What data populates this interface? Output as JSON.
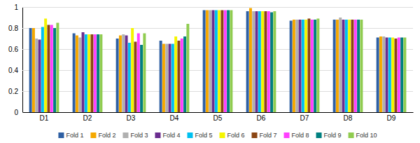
{
  "chart_data": {
    "type": "bar",
    "categories": [
      "D1",
      "D2",
      "D3",
      "D4",
      "D5",
      "D6",
      "D7",
      "D8",
      "D9"
    ],
    "series": [
      {
        "name": "Fold 1",
        "color": "#2e5fa3",
        "values": [
          0.8,
          0.75,
          0.7,
          0.68,
          0.97,
          0.96,
          0.87,
          0.88,
          0.71
        ]
      },
      {
        "name": "Fold 2",
        "color": "#f5a800",
        "values": [
          0.8,
          0.73,
          0.73,
          0.65,
          0.97,
          0.99,
          0.88,
          0.88,
          0.72
        ]
      },
      {
        "name": "Fold 3",
        "color": "#b0b0b0",
        "values": [
          0.7,
          0.71,
          0.74,
          0.65,
          0.97,
          0.96,
          0.88,
          0.9,
          0.72
        ]
      },
      {
        "name": "Fold 4",
        "color": "#6a2d8f",
        "values": [
          0.69,
          0.76,
          0.73,
          0.65,
          0.97,
          0.96,
          0.88,
          0.88,
          0.71
        ]
      },
      {
        "name": "Fold 5",
        "color": "#00c0f0",
        "values": [
          0.81,
          0.74,
          0.66,
          0.65,
          0.97,
          0.96,
          0.88,
          0.88,
          0.71
        ]
      },
      {
        "name": "Fold 6",
        "color": "#f5f500",
        "values": [
          0.89,
          0.74,
          0.8,
          0.72,
          0.97,
          0.96,
          0.88,
          0.88,
          0.71
        ]
      },
      {
        "name": "Fold 7",
        "color": "#8b4513",
        "values": [
          0.83,
          0.74,
          0.67,
          0.68,
          0.97,
          0.96,
          0.89,
          0.88,
          0.7
        ]
      },
      {
        "name": "Fold 8",
        "color": "#ff40ff",
        "values": [
          0.83,
          0.74,
          0.75,
          0.7,
          0.97,
          0.96,
          0.88,
          0.88,
          0.71
        ]
      },
      {
        "name": "Fold 9",
        "color": "#008080",
        "values": [
          0.8,
          0.74,
          0.64,
          0.72,
          0.97,
          0.95,
          0.88,
          0.88,
          0.71
        ]
      },
      {
        "name": "Fold 10",
        "color": "#90cc50",
        "values": [
          0.85,
          0.74,
          0.75,
          0.84,
          0.97,
          0.96,
          0.89,
          0.88,
          0.71
        ]
      }
    ],
    "ylim": [
      0,
      1.0
    ],
    "yticks": [
      0,
      0.2,
      0.4,
      0.6,
      0.8,
      1
    ],
    "grid": true,
    "legend": "bottom"
  }
}
